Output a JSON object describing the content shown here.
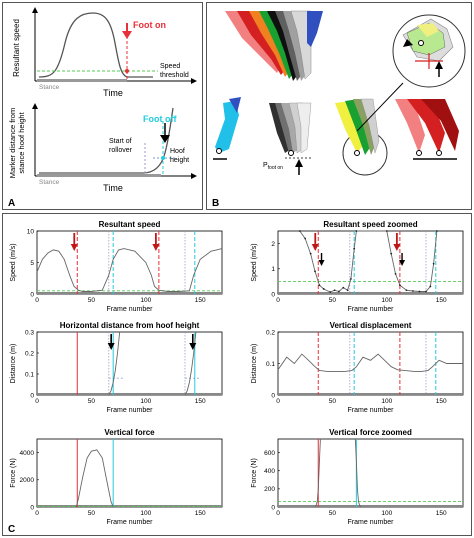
{
  "panel_a": {
    "letter": "A",
    "top": {
      "ylabel": "Resultant speed",
      "xlabel": "Time",
      "foot_on_label": "Foot on",
      "threshold_label_1": "Speed",
      "threshold_label_2": "threshold",
      "stance_label": "Stance"
    },
    "bottom": {
      "ylabel_1": "Marker distance from",
      "ylabel_2": "stance hoof height",
      "xlabel": "Time",
      "foot_off_label": "Foot off",
      "rollover_label_1": "Start of",
      "rollover_label_2": "rollover",
      "hoof_label_1": "Hoof",
      "hoof_label_2": "height",
      "stance_label": "Stance"
    }
  },
  "panel_b": {
    "letter": "B",
    "pfoot_label": "P",
    "pfoot_sub": "foot on"
  },
  "panel_c": {
    "letter": "C",
    "colors": {
      "foot_on": "#e8303a",
      "foot_off": "#22ccdd",
      "threshold": "#55cc55",
      "trace": "#666666",
      "stance": "#888888"
    }
  },
  "chart_data": [
    {
      "type": "line",
      "title": "Resultant speed",
      "xlabel": "Frame number",
      "ylabel": "Speed (m/s)",
      "xlim": [
        0,
        170
      ],
      "ylim": [
        0,
        10
      ],
      "xticks": [
        0,
        50,
        100,
        150
      ],
      "yticks": [
        0,
        5,
        10
      ],
      "x": [
        0,
        5,
        10,
        15,
        20,
        25,
        30,
        34,
        38,
        42,
        50,
        60,
        66,
        70,
        75,
        80,
        90,
        100,
        105,
        108,
        112,
        120,
        130,
        140,
        144,
        150,
        160,
        165,
        170
      ],
      "y": [
        3.5,
        5.5,
        6.5,
        7,
        6.8,
        5.5,
        3,
        1.2,
        0.6,
        0.4,
        0.4,
        0.6,
        3,
        5.5,
        7,
        7.2,
        6.8,
        5,
        3,
        1.2,
        0.6,
        0.4,
        0.4,
        0.5,
        3,
        5.5,
        6.8,
        7,
        7.2
      ],
      "threshold": 0.5,
      "foot_on": [
        37,
        112
      ],
      "foot_off": [
        70,
        145
      ],
      "dotted": [
        66,
        136
      ]
    },
    {
      "type": "line",
      "title": "Resultant speed zoomed",
      "xlabel": "Frame number",
      "ylabel": "Speed (m/s)",
      "xlim": [
        0,
        170
      ],
      "ylim": [
        0,
        2.5
      ],
      "xticks": [
        0,
        50,
        100,
        150
      ],
      "yticks": [
        0,
        1,
        2
      ],
      "x": [
        20,
        25,
        30,
        34,
        38,
        42,
        48,
        52,
        56,
        60,
        64,
        67,
        70,
        72,
        100,
        104,
        108,
        112,
        118,
        124,
        130,
        136,
        140,
        143,
        146
      ],
      "y": [
        2.5,
        2.2,
        1.6,
        0.9,
        0.35,
        0.2,
        0.08,
        0.15,
        0.1,
        0.25,
        0.15,
        0.6,
        1.8,
        2.5,
        2.5,
        1.6,
        0.8,
        0.35,
        0.15,
        0.12,
        0.1,
        0.1,
        0.3,
        1.2,
        2.5
      ],
      "threshold": 0.5,
      "foot_on": [
        37,
        112
      ],
      "foot_off": [
        70,
        145
      ],
      "dotted": [
        66,
        136
      ]
    },
    {
      "type": "line",
      "title": "Horizontal distance from hoof height",
      "xlabel": "Frame number",
      "ylabel": "Distance (m)",
      "xlim": [
        0,
        170
      ],
      "ylim": [
        0,
        0.3
      ],
      "xticks": [
        0,
        50,
        100,
        150
      ],
      "yticks": [
        0,
        0.1,
        0.2,
        0.3
      ],
      "x": [
        66,
        68,
        70,
        72,
        74,
        76
      ],
      "y": [
        0,
        0.02,
        0.06,
        0.12,
        0.2,
        0.3
      ],
      "x2": [
        136,
        138,
        140,
        142,
        144,
        146
      ],
      "y2": [
        0,
        0.02,
        0.06,
        0.12,
        0.2,
        0.3
      ],
      "hoof_height": 0.08,
      "foot_on": [
        37
      ],
      "foot_off": [
        70,
        145
      ],
      "dotted": [
        66,
        136
      ]
    },
    {
      "type": "line",
      "title": "Vertical displacement",
      "xlabel": "Frame number",
      "ylabel": "Distance (m)",
      "xlim": [
        0,
        170
      ],
      "ylim": [
        0,
        0.2
      ],
      "xticks": [
        0,
        50,
        100,
        150
      ],
      "yticks": [
        0,
        0.1,
        0.2
      ],
      "x": [
        0,
        8,
        15,
        22,
        28,
        34,
        38,
        45,
        55,
        62,
        68,
        72,
        78,
        85,
        92,
        98,
        104,
        110,
        116,
        125,
        132,
        138,
        142,
        148,
        155,
        162,
        170
      ],
      "y": [
        0.08,
        0.12,
        0.1,
        0.13,
        0.11,
        0.09,
        0.078,
        0.075,
        0.075,
        0.075,
        0.078,
        0.09,
        0.12,
        0.11,
        0.13,
        0.11,
        0.09,
        0.08,
        0.078,
        0.075,
        0.075,
        0.078,
        0.09,
        0.11,
        0.1,
        0.1,
        0.1
      ],
      "foot_on": [
        37,
        112
      ],
      "foot_off": [
        70,
        145
      ],
      "dotted": [
        66,
        136
      ]
    },
    {
      "type": "line",
      "title": "Vertical force",
      "xlabel": "Frame number",
      "ylabel": "Force (N)",
      "xlim": [
        0,
        170
      ],
      "ylim": [
        0,
        5000
      ],
      "xticks": [
        0,
        50,
        100,
        150
      ],
      "yticks": [
        0,
        2000,
        4000
      ],
      "x": [
        36,
        38,
        42,
        46,
        50,
        55,
        60,
        64,
        68,
        70
      ],
      "y": [
        0,
        600,
        2200,
        3600,
        4100,
        4200,
        3600,
        2000,
        400,
        0
      ],
      "threshold": 50,
      "foot_on": [
        37
      ],
      "foot_off": [
        70
      ]
    },
    {
      "type": "line",
      "title": "Vertical force zoomed",
      "xlabel": "Frame number",
      "ylabel": "Force (N)",
      "xlim": [
        0,
        170
      ],
      "ylim": [
        0,
        750
      ],
      "xticks": [
        0,
        50,
        100,
        150
      ],
      "yticks": [
        0,
        200,
        400,
        600
      ],
      "x": [
        34,
        35,
        36,
        37,
        38,
        39
      ],
      "y": [
        0,
        20,
        60,
        200,
        500,
        750
      ],
      "x2": [
        71,
        72,
        73,
        74,
        75,
        76
      ],
      "y2": [
        750,
        500,
        200,
        60,
        20,
        0
      ],
      "threshold": 60,
      "foot_on": [
        37
      ],
      "foot_off": [
        72
      ]
    }
  ]
}
